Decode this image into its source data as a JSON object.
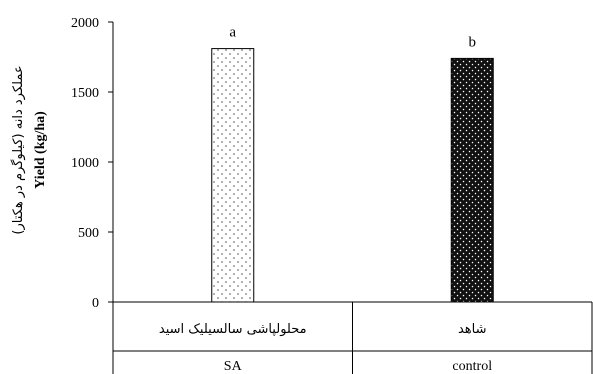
{
  "chart_data": {
    "type": "bar",
    "categories": [
      {
        "label_fa": "محلولپاشی سالسیلیک اسید",
        "label_en": "SA"
      },
      {
        "label_fa": "شاهد",
        "label_en": "control"
      }
    ],
    "values": [
      1810,
      1740
    ],
    "significance": [
      "a",
      "b"
    ],
    "ylabel_fa": "عملکرد دانه (کیلوگرم در هکتار)",
    "ylabel_en": "Yield  (kg/ha)",
    "ylim": [
      0,
      2000
    ],
    "yticks": [
      0,
      500,
      1000,
      1500,
      2000
    ],
    "grid": false,
    "bar_styles": [
      "light-dotted",
      "dark-dotted"
    ]
  }
}
